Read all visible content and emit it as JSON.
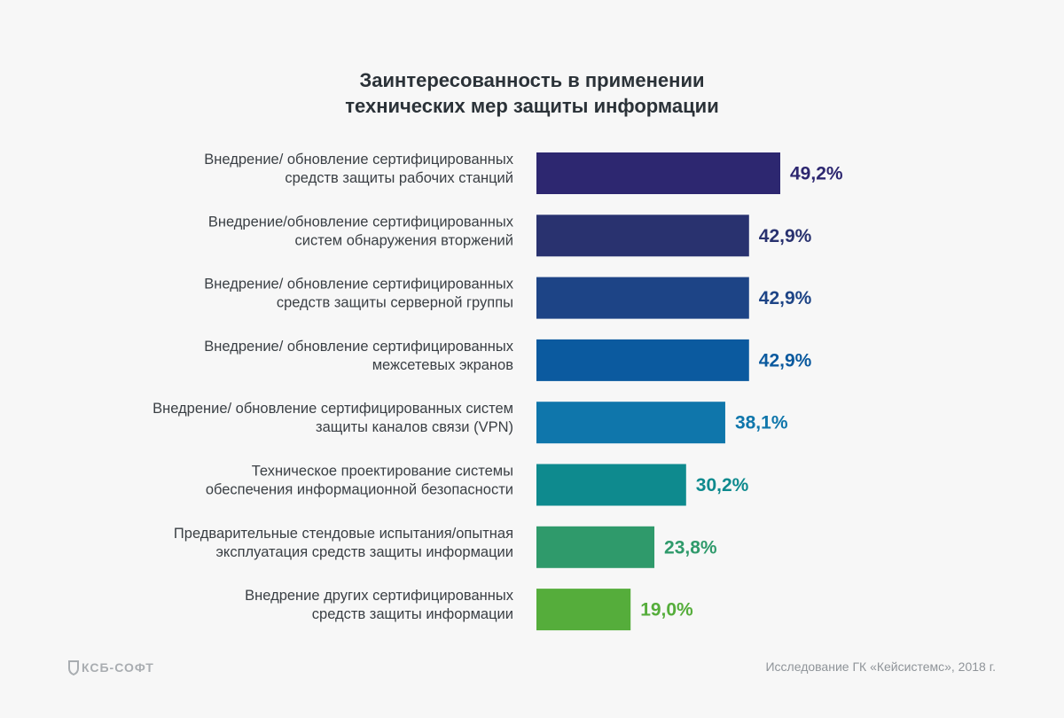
{
  "chart_data": {
    "type": "bar",
    "orientation": "horizontal",
    "title_lines": [
      "Заинтересованность в применении",
      "технических мер защиты информации"
    ],
    "categories": [
      [
        "Внедрение/ обновление сертифицированных",
        "средств защиты рабочих станций"
      ],
      [
        "Внедрение/обновление сертифицированных",
        "систем обнаружения вторжений"
      ],
      [
        "Внедрение/ обновление сертифицированных",
        "средств защиты серверной группы"
      ],
      [
        "Внедрение/ обновление сертифицированных",
        "межсетевых экранов"
      ],
      [
        "Внедрение/ обновление сертифицированных систем",
        "защиты каналов связи (VPN)"
      ],
      [
        "Техническое проектирование системы",
        "обеспечения информационной безопасности"
      ],
      [
        "Предварительные стендовые испытания/опытная",
        "эксплуатация средств защиты информации"
      ],
      [
        "Внедрение других сертифицированных",
        "средств защиты информации"
      ]
    ],
    "values": [
      49.2,
      42.9,
      42.9,
      42.9,
      38.1,
      30.2,
      23.8,
      19.0
    ],
    "value_labels": [
      "49,2%",
      "42,9%",
      "42,9%",
      "42,9%",
      "38,1%",
      "30,2%",
      "23,8%",
      "19,0%"
    ],
    "colors": [
      "#2d2770",
      "#29326f",
      "#1d4486",
      "#0b5a9f",
      "#0f76ab",
      "#0e8a8e",
      "#2f9a6b",
      "#55ad3b"
    ],
    "xlim": [
      0,
      49.2
    ],
    "grid": false,
    "legend": "none"
  },
  "footer": {
    "logo_text": "КСБ-СОФТ",
    "source": "Исследование ГК «Кейсистемс», 2018 г."
  }
}
